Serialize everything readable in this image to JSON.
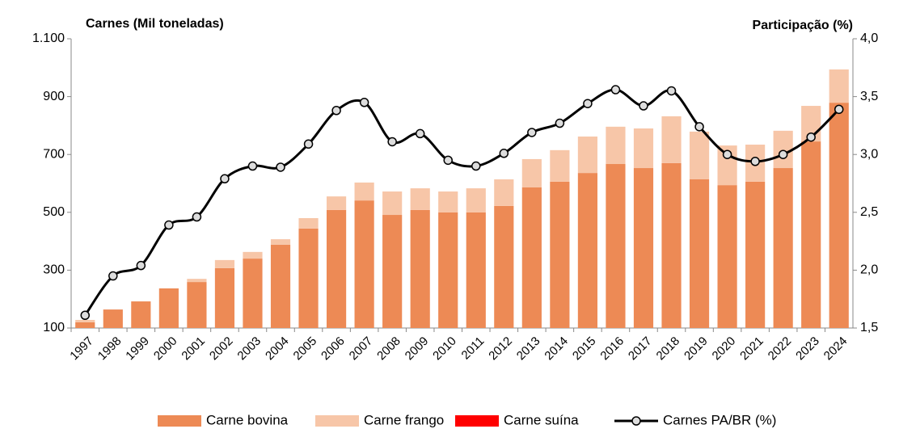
{
  "chart_data": {
    "type": "bar-line",
    "y_title": "Carnes (Mil toneladas)",
    "y2_title": "Participação (%)",
    "categories": [
      "1997",
      "1998",
      "1999",
      "2000",
      "2001",
      "2002",
      "2003",
      "2004",
      "2005",
      "2006",
      "2007",
      "2008",
      "2009",
      "2010",
      "2011",
      "2012",
      "2013",
      "2014",
      "2015",
      "2016",
      "2017",
      "2018",
      "2019",
      "2020",
      "2021",
      "2022",
      "2023",
      "2024"
    ],
    "series": [
      {
        "name": "Carne bovina",
        "color": "#ed8a55",
        "stack": true,
        "values": [
          120,
          164,
          192,
          237,
          259,
          307,
          340,
          388,
          444,
          508,
          541,
          491,
          508,
          500,
          500,
          522,
          586,
          606,
          636,
          667,
          653,
          670,
          614,
          594,
          606,
          653,
          745,
          879
        ]
      },
      {
        "name": "Carne frango",
        "color": "#f7c6a8",
        "stack": true,
        "values": [
          8,
          0,
          0,
          0,
          11,
          28,
          23,
          19,
          36,
          47,
          62,
          81,
          75,
          72,
          83,
          92,
          98,
          109,
          126,
          129,
          137,
          162,
          165,
          137,
          128,
          129,
          123,
          115
        ]
      },
      {
        "name": "Carne suína",
        "color": "#ff0000",
        "stack": true,
        "values": [
          0,
          0,
          0,
          0,
          0,
          0,
          0,
          0,
          0,
          0,
          0,
          0,
          0,
          0,
          0,
          0,
          0,
          0,
          0,
          0,
          0,
          0,
          0,
          0,
          0,
          0,
          0,
          0
        ]
      },
      {
        "name": "Carnes PA/BR (%)",
        "color": "#000000",
        "axis": "y2",
        "kind": "line",
        "values": [
          1.61,
          1.95,
          2.04,
          2.39,
          2.46,
          2.79,
          2.9,
          2.89,
          3.09,
          3.38,
          3.45,
          3.11,
          3.18,
          2.95,
          2.9,
          3.01,
          3.19,
          3.27,
          3.44,
          3.56,
          3.42,
          3.55,
          3.24,
          3.0,
          2.94,
          3.0,
          3.15,
          3.39
        ]
      }
    ],
    "ylim": [
      100,
      1100
    ],
    "yticks": [
      100,
      300,
      500,
      700,
      900,
      {
        "value": 1100,
        "label": "1.100"
      }
    ],
    "y2lim": [
      1.5,
      4.0
    ],
    "y2ticks": [
      {
        "value": 1.5,
        "label": "1,5"
      },
      {
        "value": 2.0,
        "label": "2,0"
      },
      {
        "value": 2.5,
        "label": "2,5"
      },
      {
        "value": 3.0,
        "label": "3,0"
      },
      {
        "value": 3.5,
        "label": "3,5"
      },
      {
        "value": 4.0,
        "label": "4,0"
      }
    ],
    "legend": "bottom"
  }
}
